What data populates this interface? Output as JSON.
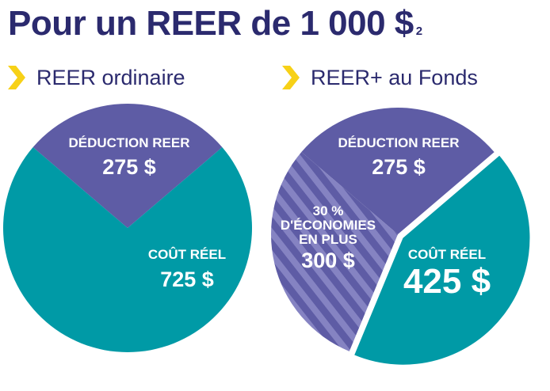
{
  "title": "Pour un REER de 1 000 $",
  "title_note": "2",
  "colors": {
    "primary": "#2b2a6e",
    "accent": "#f7d117",
    "purple": "#5e5ca5",
    "teal": "#009aa6",
    "hatch_light": "#8583c2"
  },
  "chart_data": [
    {
      "type": "pie",
      "title": "REER ordinaire",
      "slices": [
        {
          "label": "DÉDUCTION REER",
          "value": 275,
          "display": "275 $",
          "color": "#5e5ca5"
        },
        {
          "label": "COÛT RÉEL",
          "value": 725,
          "display": "725 $",
          "color": "#009aa6"
        }
      ]
    },
    {
      "type": "pie",
      "title": "REER+ au Fonds",
      "slices": [
        {
          "label": "DÉDUCTION REER",
          "value": 275,
          "display": "275 $",
          "color": "#5e5ca5"
        },
        {
          "label": "COÛT RÉEL",
          "value": 425,
          "display": "425 $",
          "color": "#009aa6",
          "exploded": true
        },
        {
          "label_lines": [
            "30 %",
            "D'ÉCONOMIES",
            "EN PLUS"
          ],
          "value": 300,
          "display": "300 $",
          "color": "#5e5ca5",
          "hatched": true
        }
      ]
    }
  ]
}
